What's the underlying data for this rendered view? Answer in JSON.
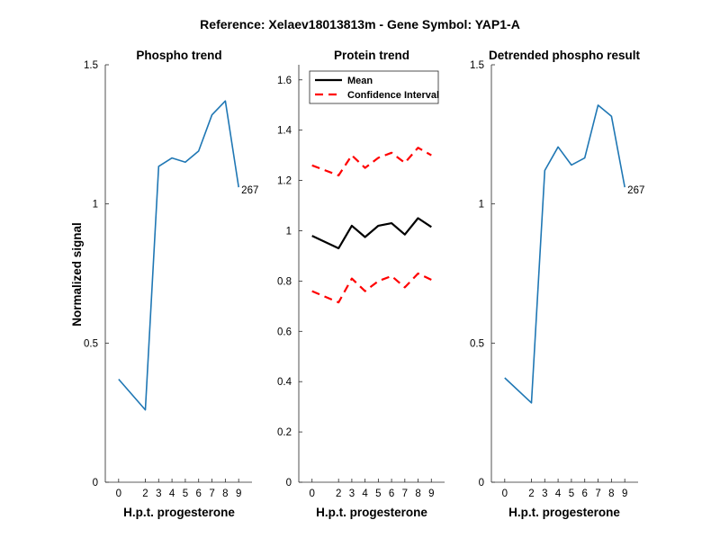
{
  "figure_title": "Reference:  Xelaev18013813m - Gene Symbol:  YAP1-A",
  "colors": {
    "blue": "#1f77b4",
    "black": "#000000",
    "red": "#ff0000",
    "axis": "#262626"
  },
  "chart_data": [
    {
      "type": "line",
      "title": "Phospho trend",
      "xlabel": "H.p.t. progesterone",
      "ylabel": "Normalized signal",
      "x": [
        0,
        2,
        3,
        4,
        5,
        6,
        7,
        8,
        9
      ],
      "xlim": [
        -1,
        10
      ],
      "ylim": [
        0,
        1.5
      ],
      "yticks": [
        0,
        0.5,
        1,
        1.5
      ],
      "ytick_labels": [
        "0",
        "0.5",
        "1",
        "1.5"
      ],
      "series": [
        {
          "color": "blue",
          "values": [
            0.37,
            0.26,
            1.135,
            1.165,
            1.15,
            1.19,
            1.32,
            1.37,
            1.06
          ]
        }
      ],
      "end_label": "267"
    },
    {
      "type": "line",
      "title": "Protein trend",
      "xlabel": "H.p.t. progesterone",
      "ylabel": "",
      "x": [
        0,
        2,
        3,
        4,
        5,
        6,
        7,
        8,
        9
      ],
      "xlim": [
        -1,
        10
      ],
      "ylim": [
        0,
        1.66
      ],
      "yticks": [
        0,
        0.2,
        0.4,
        0.6,
        0.8,
        1,
        1.2,
        1.4,
        1.6
      ],
      "ytick_labels": [
        "0",
        "0.2",
        "0.4",
        "0.6",
        "0.8",
        "1",
        "1.2",
        "1.4",
        "1.6"
      ],
      "series": [
        {
          "name": "Mean",
          "color": "black",
          "style": "solid",
          "values": [
            0.98,
            0.93,
            1.02,
            0.975,
            1.02,
            1.03,
            0.985,
            1.05,
            1.015
          ]
        },
        {
          "name": "Confidence Interval",
          "color": "red",
          "style": "dashed",
          "values": [
            1.26,
            1.22,
            1.3,
            1.25,
            1.29,
            1.31,
            1.27,
            1.33,
            1.3
          ]
        },
        {
          "color": "red",
          "style": "dashed",
          "values": [
            0.76,
            0.715,
            0.81,
            0.76,
            0.8,
            0.82,
            0.775,
            0.83,
            0.805
          ]
        }
      ],
      "legend": {
        "position": "top-left",
        "entries": [
          "Mean",
          "Confidence Interval"
        ]
      }
    },
    {
      "type": "line",
      "title": "Detrended phospho result",
      "xlabel": "H.p.t. progesterone",
      "ylabel": "",
      "x": [
        0,
        2,
        3,
        4,
        5,
        6,
        7,
        8,
        9
      ],
      "xlim": [
        -1,
        10
      ],
      "ylim": [
        0,
        1.5
      ],
      "yticks": [
        0,
        0.5,
        1,
        1.5
      ],
      "ytick_labels": [
        "0",
        "0.5",
        "1",
        "1.5"
      ],
      "series": [
        {
          "color": "blue",
          "values": [
            0.375,
            0.285,
            1.12,
            1.205,
            1.14,
            1.165,
            1.355,
            1.315,
            1.06
          ]
        }
      ],
      "end_label": "267"
    }
  ],
  "xtick_labels": [
    "0",
    "2",
    "3",
    "4",
    "5",
    "6",
    "7",
    "8",
    "9"
  ]
}
